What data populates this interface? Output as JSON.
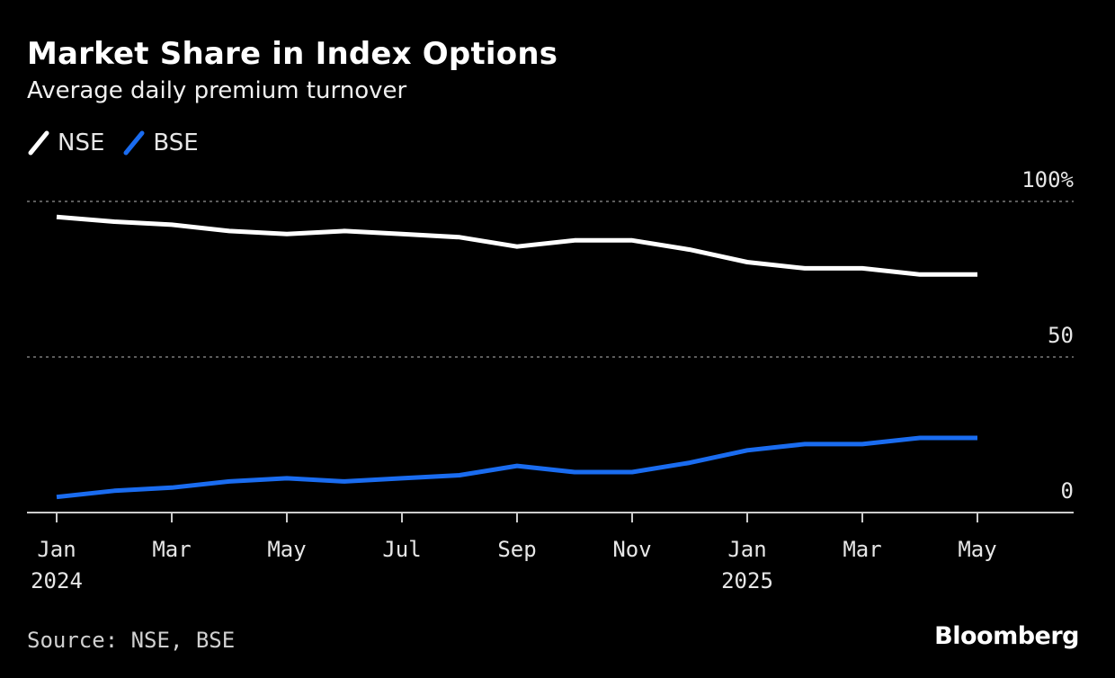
{
  "title": "Market Share in Index Options",
  "subtitle": "Average daily premium turnover",
  "source": "Source: NSE, BSE",
  "brand": "Bloomberg",
  "colors": {
    "NSE": "#ffffff",
    "BSE": "#1a6cf0",
    "grid": "#7a7a7a",
    "axis": "#cccccc"
  },
  "chart_data": {
    "type": "line",
    "title": "Market Share in Index Options",
    "subtitle": "Average daily premium turnover",
    "x": [
      "2024-01",
      "2024-02",
      "2024-03",
      "2024-04",
      "2024-05",
      "2024-06",
      "2024-07",
      "2024-08",
      "2024-09",
      "2024-10",
      "2024-11",
      "2024-12",
      "2025-01",
      "2025-02",
      "2025-03",
      "2025-04",
      "2025-05"
    ],
    "series": [
      {
        "name": "NSE",
        "color": "#ffffff",
        "values": [
          95,
          93.5,
          92.5,
          90.5,
          89.5,
          90.5,
          89.5,
          88.5,
          85.5,
          87.5,
          87.5,
          84.5,
          80.5,
          78.5,
          78.5,
          76.5,
          76.5
        ]
      },
      {
        "name": "BSE",
        "color": "#1a6cf0",
        "values": [
          5,
          7,
          8,
          10,
          11,
          10,
          11,
          12,
          15,
          13,
          13,
          16,
          20,
          22,
          22,
          24,
          24
        ]
      }
    ],
    "ylim": [
      0,
      100
    ],
    "yticks": [
      {
        "value": 100,
        "label": "100%"
      },
      {
        "value": 50,
        "label": "50"
      },
      {
        "value": 0,
        "label": "0"
      }
    ],
    "xticks": [
      {
        "x": "2024-01",
        "label": "Jan",
        "year": "2024"
      },
      {
        "x": "2024-03",
        "label": "Mar"
      },
      {
        "x": "2024-05",
        "label": "May"
      },
      {
        "x": "2024-07",
        "label": "Jul"
      },
      {
        "x": "2024-09",
        "label": "Sep"
      },
      {
        "x": "2024-11",
        "label": "Nov"
      },
      {
        "x": "2025-01",
        "label": "Jan",
        "year": "2025"
      },
      {
        "x": "2025-03",
        "label": "Mar"
      },
      {
        "x": "2025-05",
        "label": "May"
      }
    ],
    "grid": true,
    "legend": "top-left"
  }
}
